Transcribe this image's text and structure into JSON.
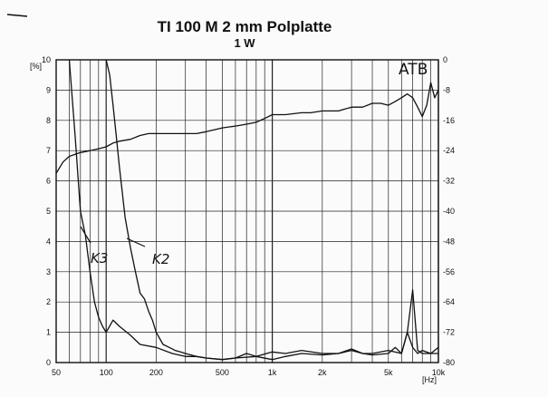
{
  "chart_data": {
    "type": "line",
    "title": "TI 100 M   2 mm Polplatte",
    "subtitle": "1 W",
    "x_scale": "log",
    "xlim": [
      50,
      10000
    ],
    "x_ticks": [
      50,
      100,
      200,
      500,
      1000,
      2000,
      5000,
      10000
    ],
    "x_tick_labels": [
      "50",
      "100",
      "200",
      "500",
      "1k",
      "2k",
      "5k",
      "10k"
    ],
    "x_unit": "[Hz]",
    "ylim_left": [
      0,
      10
    ],
    "y_left_ticks": [
      0,
      1,
      2,
      3,
      4,
      5,
      6,
      7,
      8,
      9,
      10
    ],
    "y_left_unit": "[%]",
    "ylim_right": [
      -80,
      0
    ],
    "y_right_ticks": [
      0,
      -8,
      -16,
      -24,
      -32,
      -40,
      -48,
      -56,
      -64,
      -72,
      -80
    ],
    "grid": true,
    "annotations": [
      "ATB",
      "K3",
      "K2"
    ],
    "series": [
      {
        "name": "ATB",
        "axis": "right",
        "x": [
          50,
          55,
          60,
          70,
          80,
          90,
          100,
          110,
          120,
          140,
          160,
          180,
          200,
          250,
          300,
          350,
          400,
          500,
          600,
          700,
          800,
          900,
          1000,
          1200,
          1500,
          1700,
          2000,
          2500,
          3000,
          3500,
          4000,
          4500,
          5000,
          5500,
          6000,
          6500,
          7000,
          7500,
          8000,
          8500,
          9000,
          9500,
          10000
        ],
        "values": [
          -30,
          -27,
          -25.5,
          -24.5,
          -24,
          -23.5,
          -23,
          -22,
          -21.5,
          -21,
          -20,
          -19.5,
          -19.5,
          -19.5,
          -19.5,
          -19.5,
          -19,
          -18,
          -17.5,
          -17,
          -16.5,
          -15.5,
          -14.5,
          -14.5,
          -14,
          -14,
          -13.5,
          -13.5,
          -12.5,
          -12.5,
          -11.5,
          -11.5,
          -12,
          -11,
          -10,
          -9,
          -10,
          -12.5,
          -15,
          -12,
          -6,
          -10,
          -8
        ]
      },
      {
        "name": "K2",
        "axis": "left",
        "x": [
          100,
          105,
          110,
          115,
          120,
          130,
          140,
          150,
          160,
          170,
          180,
          190,
          200,
          220,
          240,
          260,
          280,
          300,
          350,
          400,
          500,
          600,
          700,
          800,
          1000,
          1200,
          1500,
          2000,
          2500,
          3000,
          3500,
          4000,
          5000,
          6000,
          6500,
          7000,
          7500,
          8000,
          9000,
          10000
        ],
        "values": [
          10,
          9.5,
          8.5,
          7.5,
          6.5,
          4.8,
          3.8,
          3.0,
          2.3,
          2.1,
          1.7,
          1.4,
          1.0,
          0.6,
          0.5,
          0.4,
          0.35,
          0.3,
          0.2,
          0.15,
          0.1,
          0.15,
          0.3,
          0.2,
          0.1,
          0.2,
          0.3,
          0.25,
          0.3,
          0.45,
          0.3,
          0.3,
          0.4,
          0.3,
          1.0,
          0.5,
          0.3,
          0.4,
          0.3,
          0.5
        ]
      },
      {
        "name": "K3",
        "axis": "left",
        "x": [
          60,
          65,
          70,
          75,
          80,
          85,
          90,
          95,
          100,
          110,
          120,
          140,
          160,
          200,
          250,
          300,
          350,
          400,
          500,
          600,
          800,
          1000,
          1200,
          1500,
          2000,
          2500,
          3000,
          3500,
          4000,
          5000,
          5500,
          6000,
          6500,
          7000,
          7200,
          7500,
          8000,
          9000,
          10000
        ],
        "values": [
          10,
          7.5,
          5.0,
          4.2,
          3.0,
          2.0,
          1.5,
          1.2,
          1.0,
          1.4,
          1.2,
          0.9,
          0.6,
          0.5,
          0.3,
          0.2,
          0.2,
          0.15,
          0.1,
          0.15,
          0.2,
          0.35,
          0.3,
          0.4,
          0.3,
          0.3,
          0.4,
          0.3,
          0.25,
          0.3,
          0.5,
          0.3,
          1.0,
          2.4,
          1.6,
          0.4,
          0.3,
          0.3,
          0.3
        ]
      }
    ]
  }
}
